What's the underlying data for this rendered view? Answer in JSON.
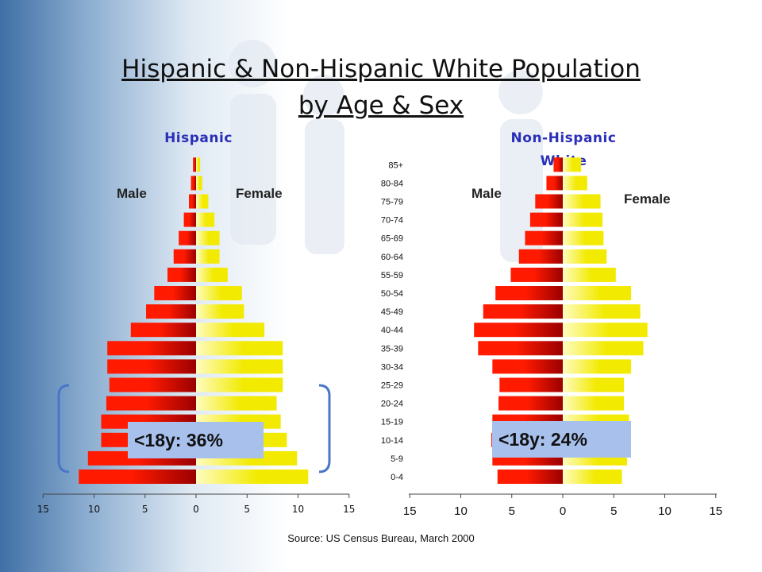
{
  "title_line1": "Hispanic & Non-Hispanic White Population",
  "title_line2": "by Age & Sex",
  "source": "Source: US Census Bureau, March 2000",
  "colors": {
    "male_dark": "#9a0000",
    "male_bright": "#ff1a00",
    "female_light": "#fffcc0",
    "female_bright": "#f2ea00",
    "callout_bg": "#a8c0ec",
    "bracket": "#4a76c9",
    "panel_title": "#2a2fb8"
  },
  "chart_data": [
    {
      "type": "bar",
      "orientation": "horizontal-population-pyramid",
      "title": "Hispanic",
      "male_label": "Male",
      "female_label": "Female",
      "categories": [
        "0-4",
        "5-9",
        "10-14",
        "15-19",
        "20-24",
        "25-29",
        "30-34",
        "35-39",
        "40-44",
        "45-49",
        "50-54",
        "55-59",
        "60-64",
        "65-69",
        "70-74",
        "75-79",
        "80-84",
        "85+"
      ],
      "series": [
        {
          "name": "Male",
          "values": [
            11.5,
            10.6,
            9.3,
            9.3,
            8.8,
            8.5,
            8.7,
            8.7,
            6.4,
            4.9,
            4.1,
            2.8,
            2.2,
            1.7,
            1.2,
            0.7,
            0.5,
            0.3
          ]
        },
        {
          "name": "Female",
          "values": [
            11.0,
            9.9,
            8.9,
            8.3,
            7.9,
            8.5,
            8.5,
            8.5,
            6.7,
            4.7,
            4.5,
            3.1,
            2.3,
            2.3,
            1.8,
            1.2,
            0.6,
            0.4
          ]
        }
      ],
      "xlim": [
        -15,
        15
      ],
      "xticks": [
        "15",
        "10",
        "5",
        "0",
        "5",
        "10",
        "15"
      ],
      "annotation": "<18y: 36%"
    },
    {
      "type": "bar",
      "orientation": "horizontal-population-pyramid",
      "title": "Non-Hispanic White",
      "male_label": "Male",
      "female_label": "Female",
      "categories": [
        "0-4",
        "5-9",
        "10-14",
        "15-19",
        "20-24",
        "25-29",
        "30-34",
        "35-39",
        "40-44",
        "45-49",
        "50-54",
        "55-59",
        "60-64",
        "65-69",
        "70-74",
        "75-79",
        "80-84",
        "85+"
      ],
      "series": [
        {
          "name": "Male",
          "values": [
            6.4,
            6.9,
            7.0,
            6.9,
            6.3,
            6.2,
            6.9,
            8.3,
            8.7,
            7.8,
            6.6,
            5.1,
            4.3,
            3.7,
            3.2,
            2.7,
            1.6,
            0.9
          ]
        },
        {
          "name": "Female",
          "values": [
            5.8,
            6.3,
            6.6,
            6.5,
            6.0,
            6.0,
            6.7,
            7.9,
            8.3,
            7.6,
            6.7,
            5.2,
            4.3,
            4.0,
            3.9,
            3.7,
            2.4,
            1.8
          ]
        }
      ],
      "xlim": [
        -15,
        15
      ],
      "xticks": [
        "15",
        "10",
        "5",
        "0",
        "5",
        "10",
        "15"
      ],
      "annotation": "<18y: 24%"
    }
  ]
}
